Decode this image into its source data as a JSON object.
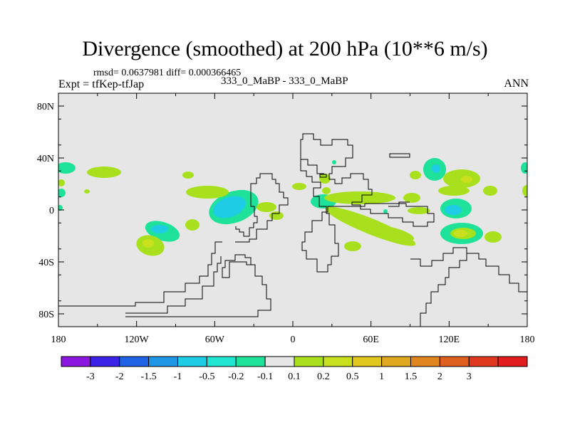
{
  "title": "Divergence (smoothed) at 200 hPa (10**6 m/s)",
  "stats": "rmsd= 0.0637981 diff= 0.000366465",
  "experiment": "Expt = tfKep-tfJap",
  "cases": "333_0_MaBP - 333_0_MaBP",
  "season": "ANN",
  "map": {
    "background_color": "#e6e6e6",
    "x_ticks": [
      "180",
      "120W",
      "60W",
      "0",
      "60E",
      "120E",
      "180"
    ],
    "y_ticks": [
      "80N",
      "40N",
      "0",
      "40S",
      "80S"
    ]
  },
  "colorbar": {
    "colors": [
      "#8b16e0",
      "#3a22e6",
      "#1e62e6",
      "#1e98e6",
      "#1ecce6",
      "#1ee6d0",
      "#1ee29a",
      "#e6e6e6",
      "#a8e01e",
      "#c8e01e",
      "#e0c81e",
      "#e0a81e",
      "#e0861e",
      "#e0601e",
      "#e0381e",
      "#e01e1e"
    ],
    "labels": [
      "-3",
      "-2",
      "-1.5",
      "-1",
      "-0.5",
      "-0.2",
      "-0.1",
      "0.1",
      "0.2",
      "0.5",
      "1",
      "1.5",
      "2",
      "3"
    ]
  }
}
